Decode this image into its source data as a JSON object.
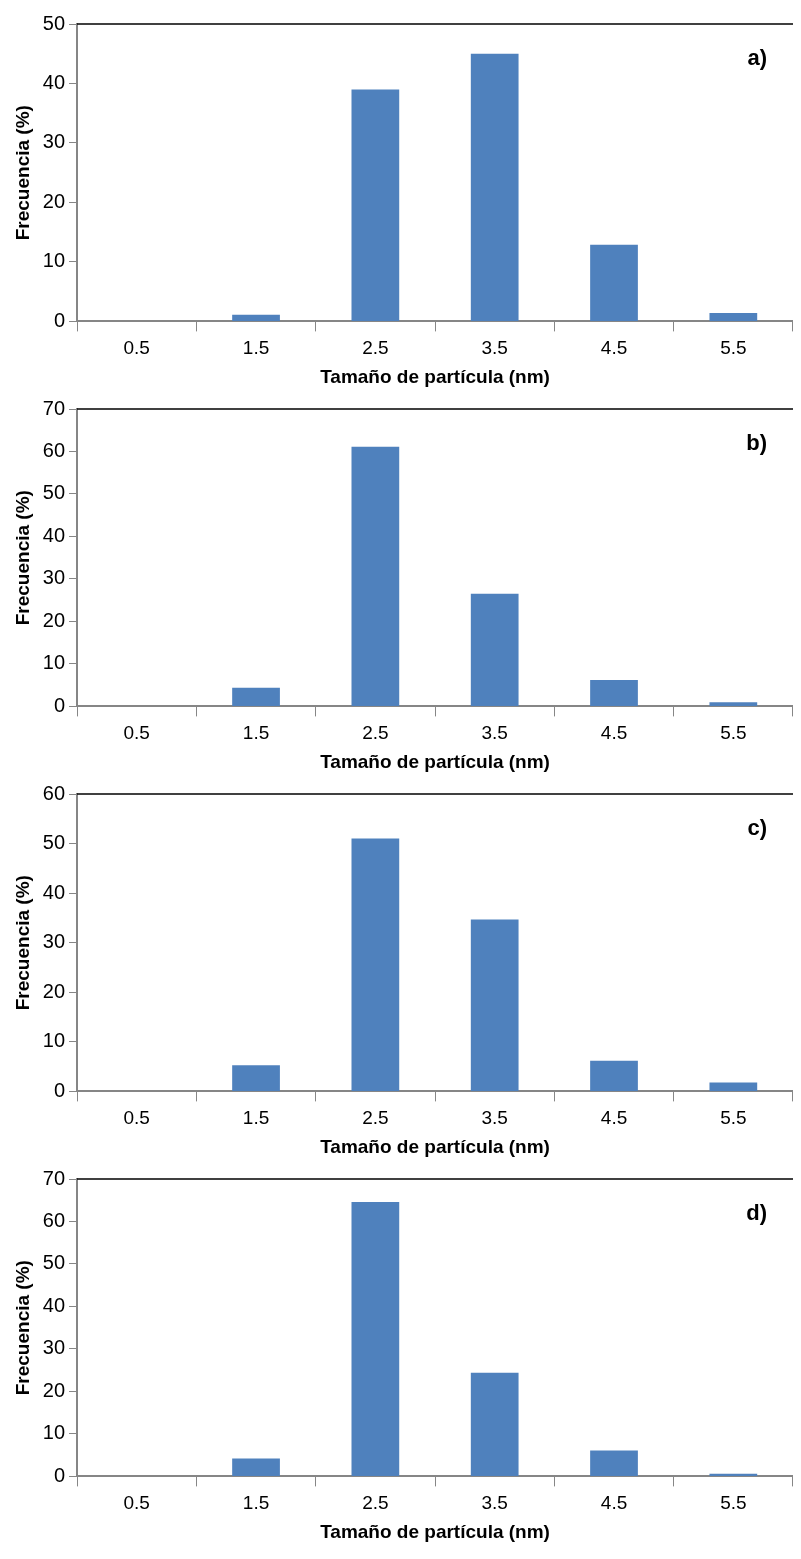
{
  "chart_data": [
    {
      "type": "bar",
      "categories": [
        "0.5",
        "1.5",
        "2.5",
        "3.5",
        "4.5",
        "5.5"
      ],
      "values": [
        0,
        1.1,
        39.0,
        45.0,
        12.9,
        1.4
      ],
      "color": "#4f81bd",
      "xlabel": "Tamaño de partícula (nm)",
      "ylabel": "Frecuencia (%)",
      "ylim": [
        0,
        50
      ],
      "yticks": [
        0,
        10,
        20,
        30,
        40,
        50
      ],
      "annotations": [
        "a)"
      ]
    },
    {
      "type": "bar",
      "categories": [
        "0.5",
        "1.5",
        "2.5",
        "3.5",
        "4.5",
        "5.5"
      ],
      "values": [
        0,
        4.4,
        61.1,
        26.5,
        6.2,
        1.0
      ],
      "color": "#4f81bd",
      "xlabel": "Tamaño de partícula (nm)",
      "ylabel": "Frecuencia (%)",
      "ylim": [
        0,
        70
      ],
      "yticks": [
        0,
        10,
        20,
        30,
        40,
        50,
        60,
        70
      ],
      "annotations": [
        "b)"
      ]
    },
    {
      "type": "bar",
      "categories": [
        "0.5",
        "1.5",
        "2.5",
        "3.5",
        "4.5",
        "5.5"
      ],
      "values": [
        0,
        5.3,
        51.0,
        34.7,
        6.2,
        1.8
      ],
      "color": "#4f81bd",
      "xlabel": "Tamaño de partícula (nm)",
      "ylabel": "Frecuencia (%)",
      "ylim": [
        0,
        60
      ],
      "yticks": [
        0,
        10,
        20,
        30,
        40,
        50,
        60
      ],
      "annotations": [
        "c)"
      ]
    },
    {
      "type": "bar",
      "categories": [
        "0.5",
        "1.5",
        "2.5",
        "3.5",
        "4.5",
        "5.5"
      ],
      "values": [
        0,
        4.2,
        64.6,
        24.4,
        6.1,
        0.6
      ],
      "color": "#4f81bd",
      "xlabel": "Tamaño de partícula (nm)",
      "ylabel": "Frecuencia (%)",
      "ylim": [
        0,
        70
      ],
      "yticks": [
        0,
        10,
        20,
        30,
        40,
        50,
        60,
        70
      ],
      "annotations": [
        "d)"
      ]
    }
  ]
}
